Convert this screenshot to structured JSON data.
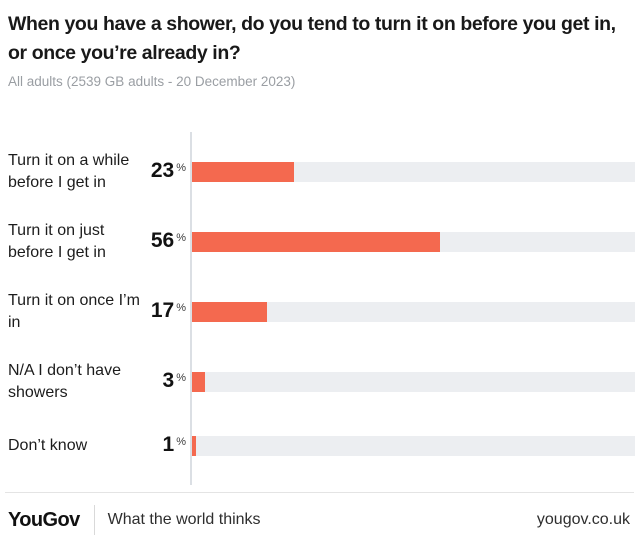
{
  "header": {
    "title": "When you have a shower, do you tend to turn it on before you get in, or once you’re already in?",
    "subtitle": "All adults (2539 GB adults - 20 December 2023)"
  },
  "chart_data": {
    "type": "bar",
    "orientation": "horizontal",
    "title": "When you have a shower, do you tend to turn it on before you get in, or once you’re already in?",
    "subtitle": "All adults (2539 GB adults - 20 December 2023)",
    "categories": [
      "Turn it on a while before I get in",
      "Turn it on just before I get in",
      "Turn it on once I’m in",
      "N/A I don’t have showers",
      "Don’t know"
    ],
    "values": [
      23,
      56,
      17,
      3,
      1
    ],
    "unit": "%",
    "xlim": [
      0,
      100
    ],
    "grid": false,
    "legend": false,
    "bar_color": "#f4694f",
    "track_color": "#eceef1"
  },
  "footer": {
    "logo": "YouGov",
    "tagline": "What the world thinks",
    "url": "yougov.co.uk"
  }
}
